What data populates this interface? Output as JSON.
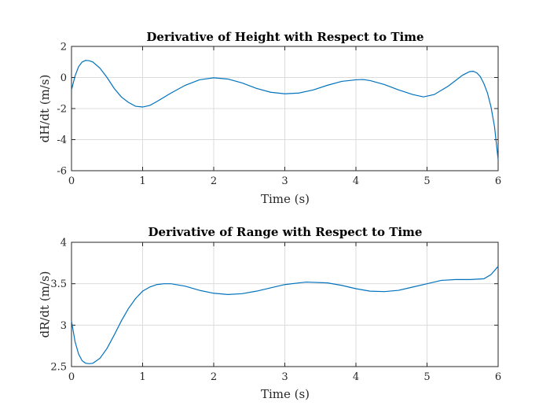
{
  "chart_data": [
    {
      "type": "line",
      "title": "Derivative of Height with Respect to Time",
      "xlabel": "Time (s)",
      "ylabel": "dH/dt (m/s)",
      "xlim": [
        0,
        6
      ],
      "ylim": [
        -6,
        2
      ],
      "xticks": [
        0,
        1,
        2,
        3,
        4,
        5,
        6
      ],
      "yticks": [
        -6,
        -4,
        -2,
        0,
        2
      ],
      "grid": true,
      "color": "#0072BD",
      "series": [
        {
          "x": [
            0,
            0.05,
            0.1,
            0.15,
            0.2,
            0.25,
            0.3,
            0.4,
            0.5,
            0.6,
            0.7,
            0.8,
            0.9,
            1.0,
            1.1,
            1.2,
            1.4,
            1.6,
            1.8,
            2.0,
            2.2,
            2.4,
            2.6,
            2.8,
            3.0,
            3.2,
            3.4,
            3.6,
            3.8,
            4.0,
            4.1,
            4.2,
            4.4,
            4.6,
            4.8,
            4.95,
            5.1,
            5.3,
            5.5,
            5.6,
            5.65,
            5.7,
            5.75,
            5.8,
            5.85,
            5.9,
            5.95,
            6.0
          ],
          "y": [
            -0.8,
            0.1,
            0.7,
            1.0,
            1.1,
            1.08,
            1.0,
            0.6,
            0.0,
            -0.7,
            -1.25,
            -1.6,
            -1.85,
            -1.9,
            -1.8,
            -1.55,
            -1.0,
            -0.5,
            -0.15,
            -0.02,
            -0.1,
            -0.35,
            -0.7,
            -0.95,
            -1.05,
            -1.0,
            -0.8,
            -0.5,
            -0.25,
            -0.15,
            -0.13,
            -0.2,
            -0.45,
            -0.8,
            -1.1,
            -1.25,
            -1.1,
            -0.55,
            0.15,
            0.38,
            0.4,
            0.3,
            0.05,
            -0.4,
            -1.0,
            -1.9,
            -3.2,
            -5.3
          ]
        }
      ]
    },
    {
      "type": "line",
      "title": "Derivative of Range with Respect to Time",
      "xlabel": "Time (s)",
      "ylabel": "dR/dt (m/s)",
      "xlim": [
        0,
        6
      ],
      "ylim": [
        2.5,
        4
      ],
      "xticks": [
        0,
        1,
        2,
        3,
        4,
        5,
        6
      ],
      "yticks": [
        2.5,
        3,
        3.5,
        4
      ],
      "grid": true,
      "color": "#0072BD",
      "series": [
        {
          "x": [
            0,
            0.05,
            0.1,
            0.15,
            0.2,
            0.25,
            0.3,
            0.4,
            0.5,
            0.6,
            0.7,
            0.8,
            0.9,
            1.0,
            1.1,
            1.2,
            1.3,
            1.4,
            1.6,
            1.8,
            2.0,
            2.2,
            2.4,
            2.6,
            2.8,
            3.0,
            3.3,
            3.6,
            3.8,
            4.0,
            4.2,
            4.4,
            4.6,
            4.8,
            5.0,
            5.2,
            5.4,
            5.6,
            5.8,
            5.9,
            6.0
          ],
          "y": [
            3.05,
            2.8,
            2.65,
            2.57,
            2.54,
            2.535,
            2.54,
            2.6,
            2.72,
            2.88,
            3.05,
            3.2,
            3.32,
            3.41,
            3.46,
            3.49,
            3.5,
            3.5,
            3.47,
            3.42,
            3.385,
            3.37,
            3.38,
            3.41,
            3.45,
            3.49,
            3.52,
            3.51,
            3.48,
            3.44,
            3.41,
            3.405,
            3.42,
            3.46,
            3.5,
            3.54,
            3.55,
            3.55,
            3.56,
            3.61,
            3.71
          ]
        }
      ]
    }
  ]
}
